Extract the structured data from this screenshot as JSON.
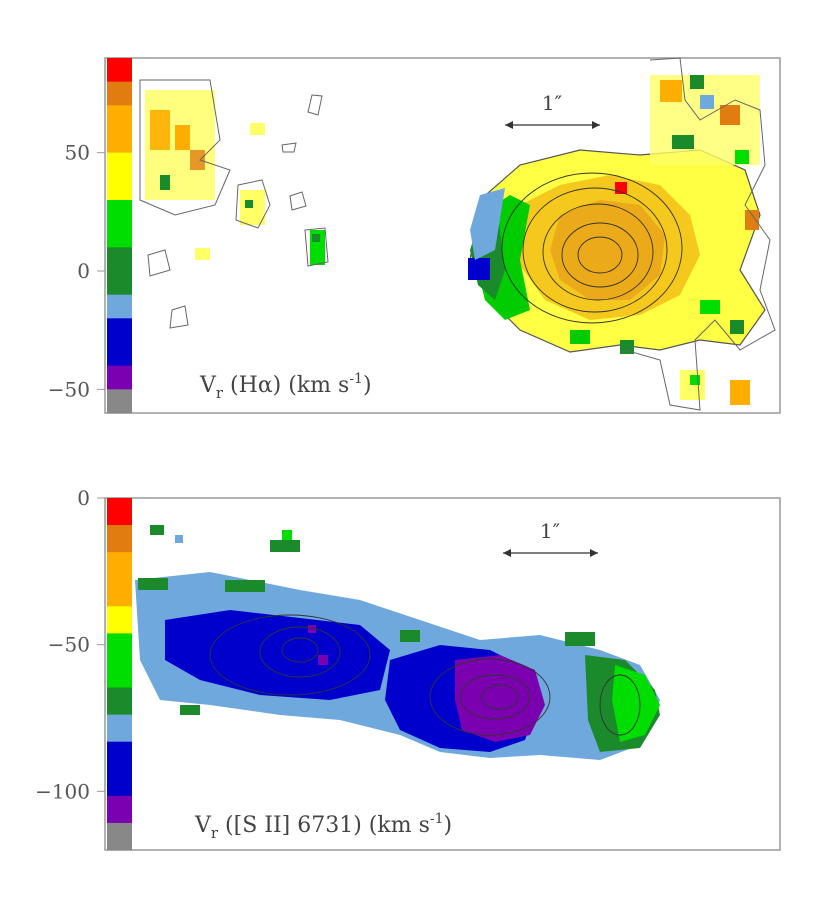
{
  "colors": {
    "red": "#ff0000",
    "dark_orange": "#e07d10",
    "orange": "#ffae00",
    "yellow": "#ffff00",
    "green": "#00dd00",
    "dark_green": "#1a8a2a",
    "light_blue": "#6fa8dc",
    "blue": "#0000cc",
    "purple": "#7a00b0",
    "gray": "#888888"
  },
  "chart_data": [
    {
      "type": "heatmap",
      "label": {
        "prefix": "V",
        "subscript": "r",
        "line": " (Hα)  (km s",
        "exp": "-1",
        "suffix": ")"
      },
      "scale_bar": "1″",
      "yticks": [
        {
          "value": 50,
          "text": "50"
        },
        {
          "value": 0,
          "text": "0"
        },
        {
          "value": -50,
          "text": "−50"
        }
      ],
      "ylim": [
        -60,
        90
      ],
      "colorbar": [
        {
          "value": 80,
          "color": "red"
        },
        {
          "value": 70,
          "color": "dark_orange"
        },
        {
          "value": 60,
          "color": "orange"
        },
        {
          "value": 50,
          "color": "orange"
        },
        {
          "value": 40,
          "color": "yellow"
        },
        {
          "value": 30,
          "color": "yellow"
        },
        {
          "value": 20,
          "color": "green"
        },
        {
          "value": 10,
          "color": "green"
        },
        {
          "value": 0,
          "color": "dark_green"
        },
        {
          "value": -10,
          "color": "dark_green"
        },
        {
          "value": -20,
          "color": "light_blue"
        },
        {
          "value": -30,
          "color": "blue"
        },
        {
          "value": -40,
          "color": "blue"
        },
        {
          "value": -50,
          "color": "purple"
        },
        {
          "value": -60,
          "color": "gray"
        }
      ]
    },
    {
      "type": "heatmap",
      "label": {
        "prefix": "V",
        "subscript": "r",
        "line": " ([S II] 6731)  (km s",
        "exp": "-1",
        "suffix": ")"
      },
      "scale_bar": "1″",
      "yticks": [
        {
          "value": 0,
          "text": "0"
        },
        {
          "value": -50,
          "text": "−50"
        },
        {
          "value": -100,
          "text": "−100"
        }
      ],
      "ylim": [
        -120,
        0
      ],
      "colorbar": [
        {
          "value": -5,
          "color": "red"
        },
        {
          "value": -15,
          "color": "dark_orange"
        },
        {
          "value": -25,
          "color": "orange"
        },
        {
          "value": -35,
          "color": "orange"
        },
        {
          "value": -45,
          "color": "yellow"
        },
        {
          "value": -55,
          "color": "green"
        },
        {
          "value": -65,
          "color": "green"
        },
        {
          "value": -75,
          "color": "dark_green"
        },
        {
          "value": -85,
          "color": "light_blue"
        },
        {
          "value": -95,
          "color": "blue"
        },
        {
          "value": -105,
          "color": "blue"
        },
        {
          "value": -115,
          "color": "purple"
        },
        {
          "value": -125,
          "color": "gray"
        }
      ]
    }
  ]
}
